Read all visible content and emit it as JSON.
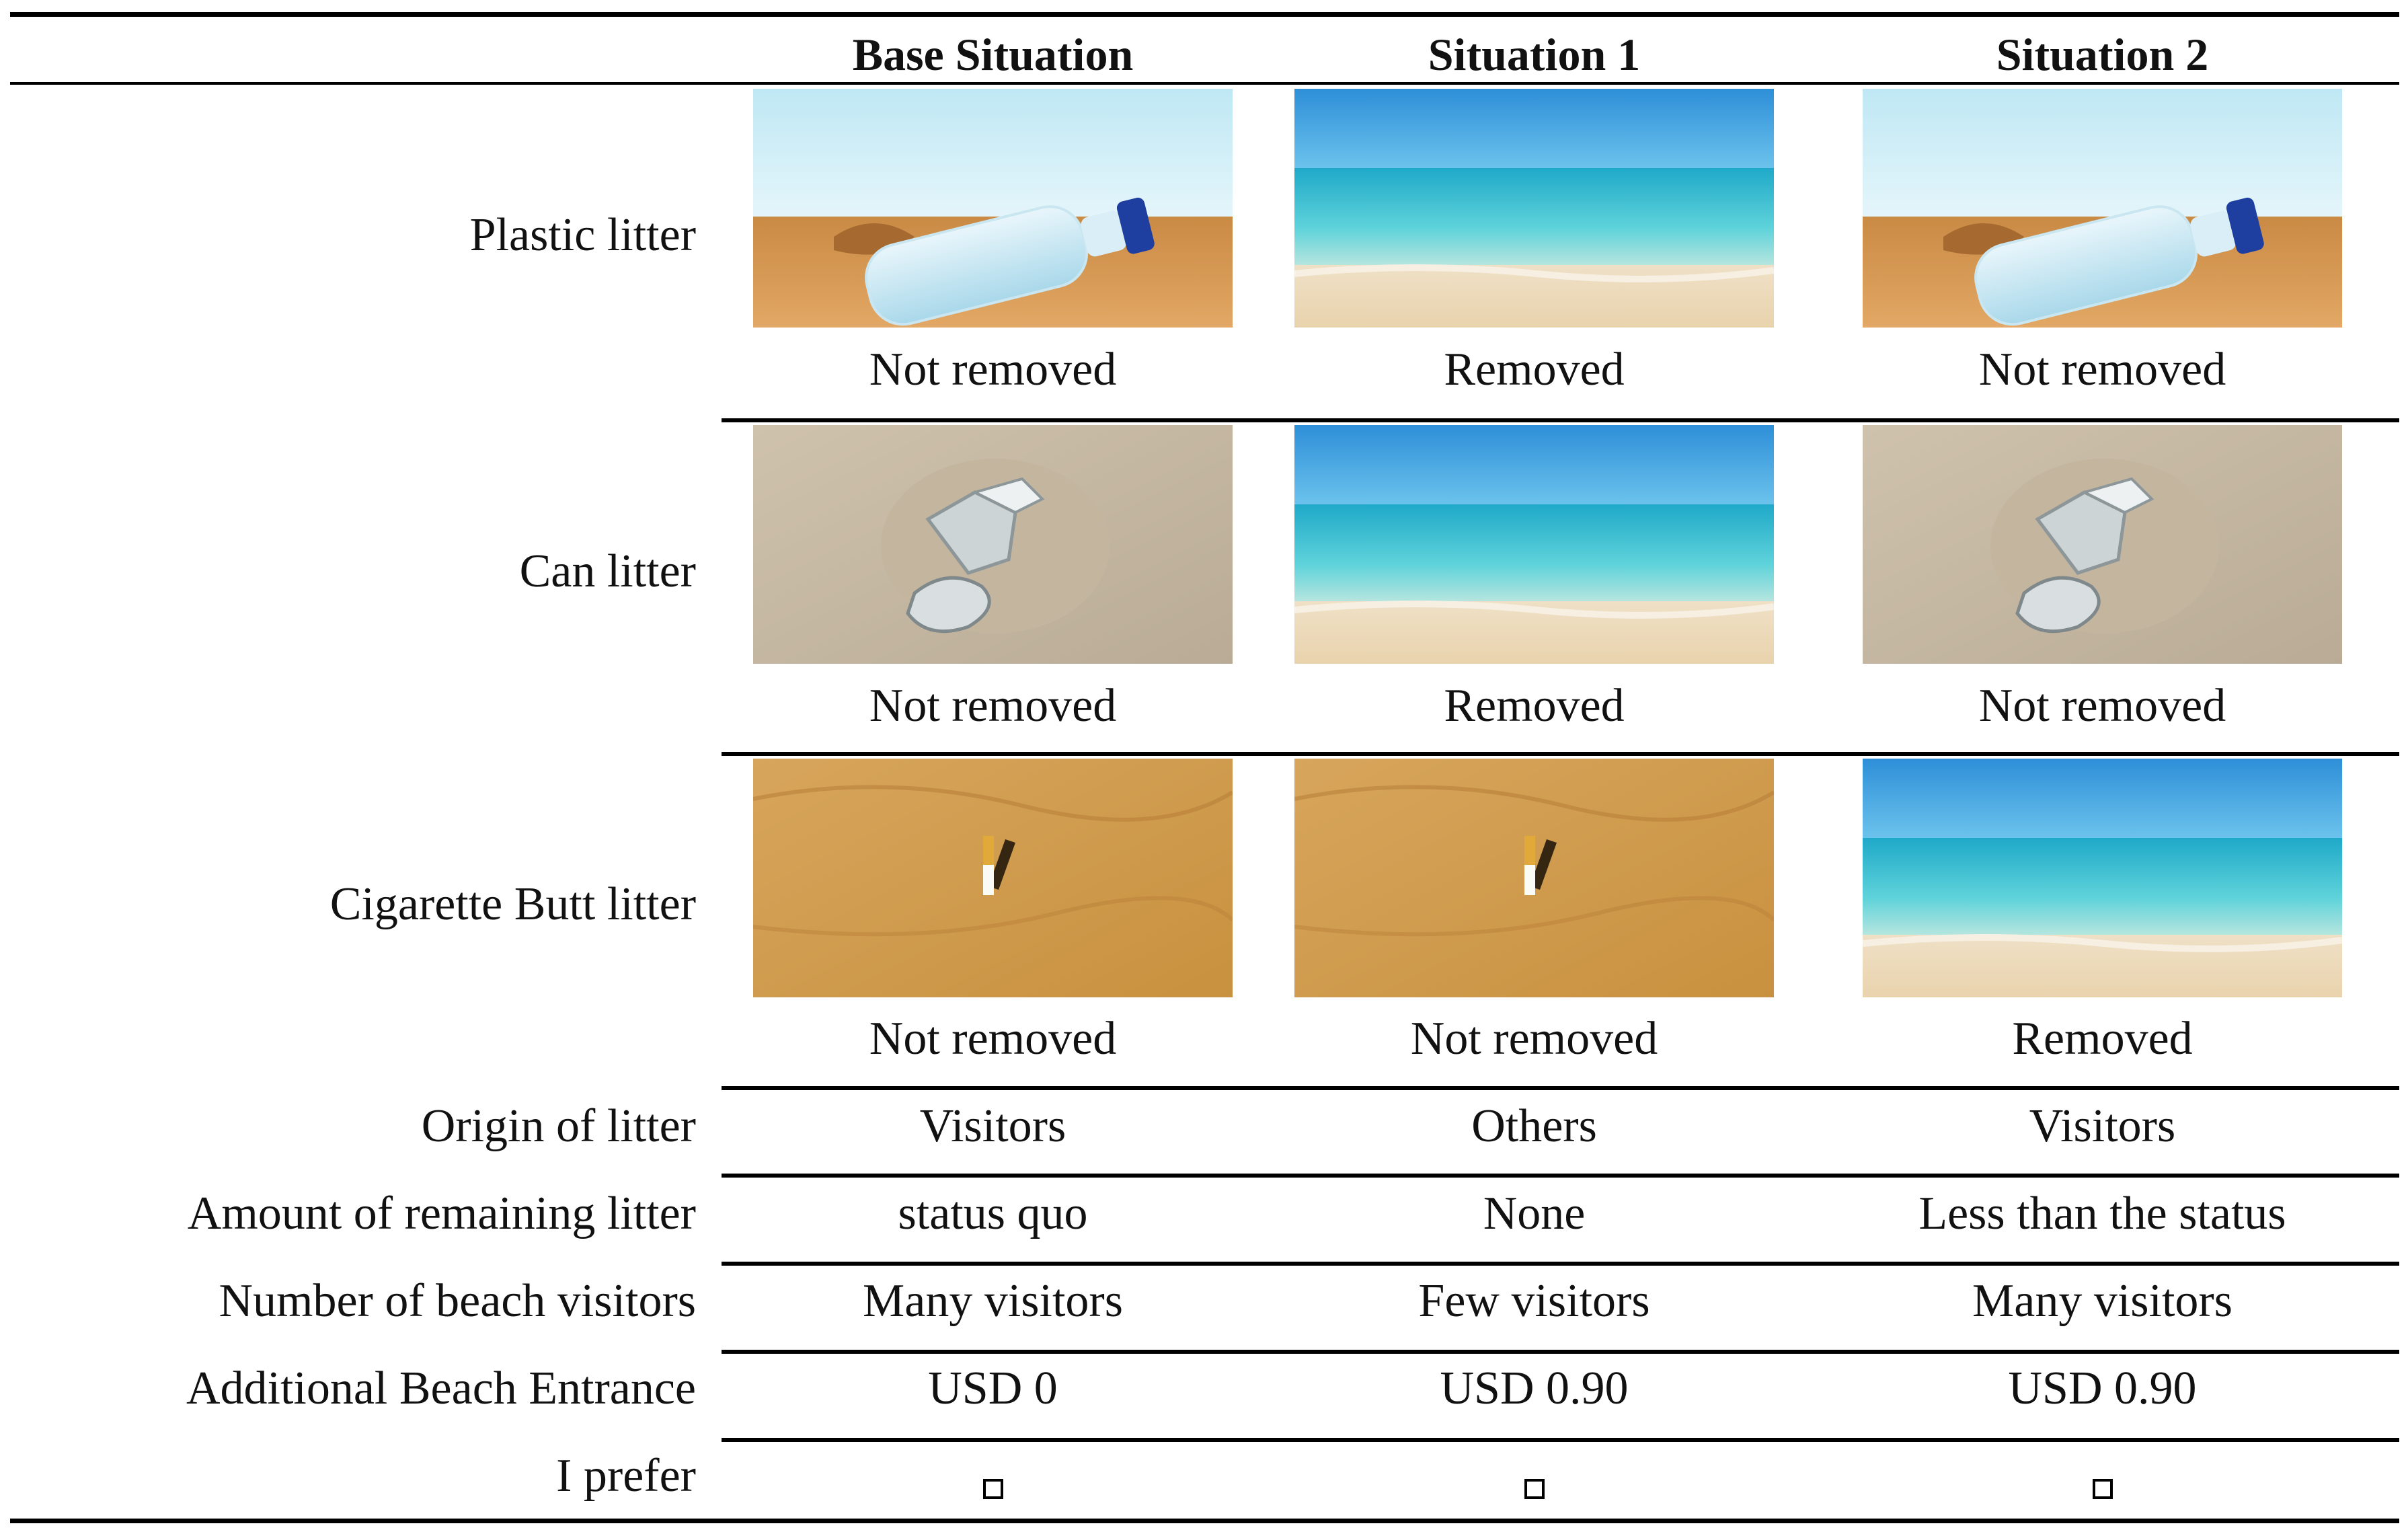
{
  "columns": [
    "Base Situation",
    "Situation 1",
    "Situation 2"
  ],
  "rows": [
    {
      "label": "Plastic litter",
      "values": [
        "Not removed",
        "Removed",
        "Not removed"
      ],
      "images": [
        "plastic-bottle-on-sand",
        "clean-beach-sea",
        "plastic-bottle-on-sand"
      ]
    },
    {
      "label": "Can litter",
      "values": [
        "Not removed",
        "Removed",
        "Not removed"
      ],
      "images": [
        "crushed-can-in-sand",
        "clean-beach-sea",
        "crushed-can-in-sand"
      ]
    },
    {
      "label": "Cigarette Butt litter",
      "values": [
        "Not removed",
        "Not removed",
        "Removed"
      ],
      "images": [
        "cigarette-butt-in-sand",
        "cigarette-butt-in-sand",
        "clean-beach-sea"
      ]
    }
  ],
  "attributes": [
    {
      "label": "Origin of litter",
      "values": [
        "Visitors",
        "Others",
        "Visitors"
      ]
    },
    {
      "label": "Amount of remaining litter",
      "values": [
        "status quo",
        "None",
        "Less than the status"
      ]
    },
    {
      "label": "Number of beach visitors",
      "values": [
        "Many visitors",
        "Few visitors",
        "Many visitors"
      ]
    },
    {
      "label": "Additional Beach Entrance",
      "values": [
        "USD 0",
        "USD 0.90",
        "USD 0.90"
      ]
    },
    {
      "label": "I prefer",
      "values": [
        "checkbox",
        "checkbox",
        "checkbox"
      ]
    }
  ]
}
